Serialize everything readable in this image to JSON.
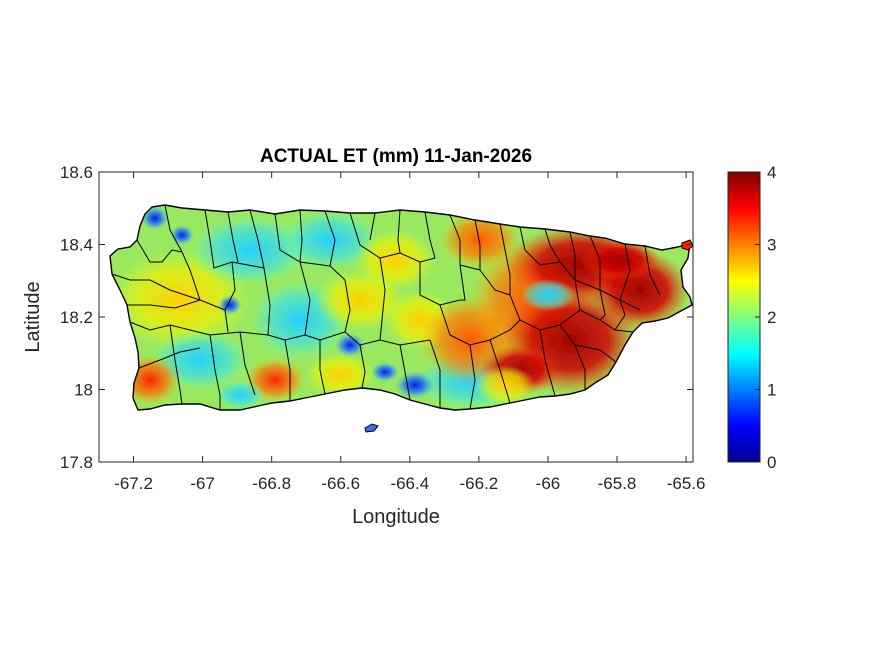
{
  "title": "ACTUAL ET (mm) 11-Jan-2026",
  "x_axis": {
    "label": "Longitude",
    "ticks": [
      -67.2,
      -67,
      -66.8,
      -66.6,
      -66.4,
      -66.2,
      -66,
      -65.8,
      -65.6
    ],
    "tick_labels": [
      "-67.2",
      "-67",
      "-66.8",
      "-66.6",
      "-66.4",
      "-66.2",
      "-66",
      "-65.8",
      "-65.6"
    ],
    "range": [
      -67.3,
      -65.58
    ]
  },
  "y_axis": {
    "label": "Latitude",
    "ticks": [
      17.8,
      18,
      18.2,
      18.4,
      18.6
    ],
    "tick_labels": [
      "17.8",
      "18",
      "18.2",
      "18.4",
      "18.6"
    ],
    "range": [
      17.8,
      18.6
    ]
  },
  "colorbar": {
    "colormap": "jet",
    "range": [
      0,
      4
    ],
    "ticks": [
      0,
      1,
      2,
      3,
      4
    ],
    "tick_labels": [
      "0",
      "1",
      "2",
      "3",
      "4"
    ],
    "colors": [
      "#00008f",
      "#0000ff",
      "#00ffff",
      "#ffff00",
      "#ff0000",
      "#800000"
    ]
  },
  "map": {
    "region": "Puerto Rico",
    "boundaries": "municipio outlines, black",
    "pattern": "moderate ET (~2) across west and center with scattered low-ET (blue) patches; high ET (3.5–4) concentrated in the east and northeast"
  }
}
